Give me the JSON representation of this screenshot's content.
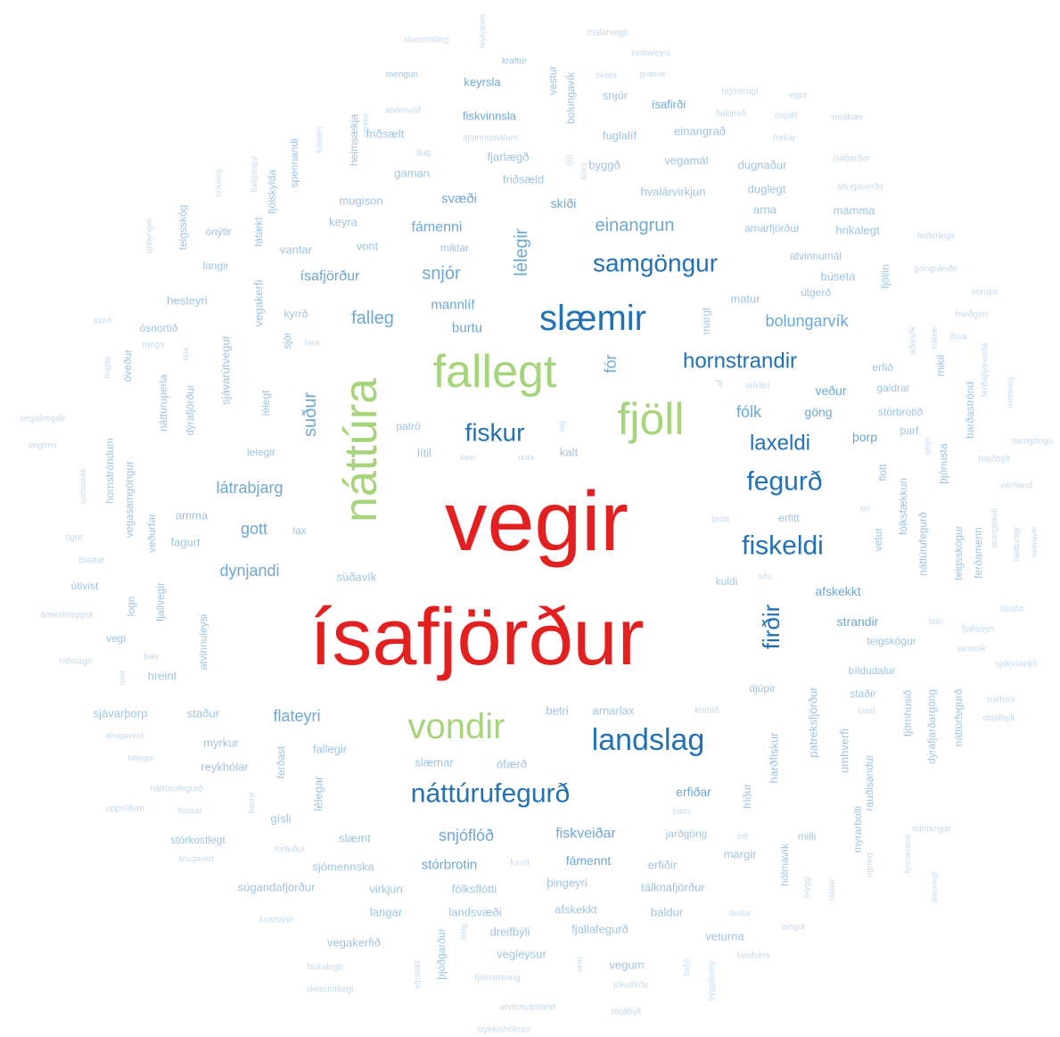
{
  "words": [
    "vegir",
    "ísafjörður",
    "fallegt",
    "náttúra",
    "fjöll",
    "vondir",
    "slæmir",
    "landslag",
    "náttúrufegurð",
    "samgöngur",
    "hornstrandir",
    "fiskur",
    "fegurð",
    "fiskeldi",
    "laxeldi",
    "firðir",
    "einangrun",
    "snjór",
    "lélegir",
    "falleg",
    "suður",
    "fólk",
    "fór",
    "bolungarvík",
    "ísafjörður",
    "fámenni",
    "svæði",
    "mannlíf",
    "burtu",
    "látrabjarg",
    "gott",
    "dynjandi",
    "flateyri",
    "snjóflóð",
    "stórbrotin",
    "fiskveiðar",
    "skemmtileg",
    "reykjanes",
    "malarvegir",
    "kraftur",
    "kvótaleysi",
    "mengun",
    "keyrsla",
    "vestur",
    "bolungavík",
    "skata",
    "grænar",
    "snjór",
    "ísafirði",
    "hrjóstrugt",
    "vigur",
    "atvinnulíf",
    "sandur",
    "fiskvinnsla",
    "fiskimið",
    "óspillt",
    "smábær",
    "frábært",
    "heimsækja",
    "friðsælt",
    "atvinnumálum",
    "fuglalíf",
    "einangrað",
    "frekar",
    "spennandi",
    "flug",
    "fjarlægð",
    "lítil",
    "fólks",
    "byggð",
    "vegamál",
    "dugnaður",
    "ísafjarðar",
    "fjallgöngur",
    "hrikaleg",
    "fjölskylda",
    "gaman",
    "friðsæld",
    "skíði",
    "hvalárvirkjun",
    "duglegt",
    "áhugaverðir",
    "teigsskóg",
    "mugison",
    "arna",
    "mamma",
    "ónýtir",
    "keyra",
    "arnarfjörður",
    "hrikalegt",
    "fátækt",
    "leiðinlegir",
    "sjóbyngeli",
    "vantar",
    "vont",
    "miklar",
    "langir",
    "atvinnumál",
    "gönguleiðir",
    "búseta",
    "fjöllin",
    "útgerð",
    "vondar",
    "hesteyri",
    "vegakerfi",
    "matur",
    "harðgert",
    "kyrrð",
    "ósnortið",
    "sveit",
    "mega",
    "fara",
    "sjór",
    "aðalvík",
    "frábær",
    "íbúa",
    "margt",
    "búa",
    "sjávarútvegur",
    "óveður",
    "hugsa",
    "erfið",
    "mikil",
    "ferðaþjónusta",
    "menning",
    "erfiður",
    "af",
    "veður",
    "galdrar",
    "náttúruperla",
    "dýrafjörður",
    "lélegt",
    "göng",
    "stórbrotið",
    "vegalengdir",
    "patró",
    "lag",
    "lítil",
    "laun",
    "nota",
    "kalt",
    "þorp",
    "þarf",
    "barðaströnd",
    "vegirnir",
    "hornströndum",
    "lelegir",
    "gegn",
    "þjónusta",
    "harðbýlt",
    "samgöngu",
    "vegasamgöngur",
    "flott",
    "fólksfækkun",
    "varðand",
    "sjálfstæðir",
    "sjó",
    "amma",
    "veðurfar",
    "brött",
    "erfitt",
    "fagurt",
    "lax",
    "vetur",
    "ögur",
    "náttúrufegurð",
    "teigsskógur",
    "ferðamenn",
    "drangjökull",
    "hætturegr",
    "veðravíti",
    "brattar",
    "súðavík",
    "séu",
    "kuldi",
    "útivist",
    "afskekkt",
    "fjallvegir",
    "logn",
    "atvinnuleysi",
    "árneshreppur",
    "skoða",
    "strandir",
    "fólki",
    "fjallasýn",
    "vegi",
    "teigskógur",
    "einstök",
    "bær",
    "rafmagn",
    "sjókvíaeldi",
    "bíldudalur",
    "dalir",
    "hreint",
    "patreksfjörður",
    "djúpir",
    "staðir",
    "tjörnhúsið",
    "dýrafjarðargöng",
    "náttúrfegurð",
    "náttúra",
    "land",
    "strjálbýlt",
    "sjávarþorp",
    "staður",
    "betri",
    "arnarlax",
    "komið",
    "áhugaverð",
    "myrkur",
    "umhverfi",
    "ferðast",
    "fallegir",
    "fallegur",
    "harðfiskur",
    "reykhólar",
    "slæmar",
    "ófærð",
    "rauðisandur",
    "náttúrufegurð",
    "lélegar",
    "erfiðar",
    "fríður",
    "mýrarbolti",
    "baunir",
    "uppsölum",
    "fossar",
    "gísli",
    "bæta",
    "stórkostlegt",
    "forfeður",
    "slæmt",
    "jarðgöng",
    "loft",
    "milli",
    "minningar",
    "hólmavík",
    "margir",
    "áhugavert",
    "sjómennska",
    "lundi",
    "fámennt",
    "erfiðir",
    "rigning",
    "fyrirverand",
    "súgandafjörður",
    "virkjun",
    "fólksflótti",
    "þingeyri",
    "tálknafjörður",
    "öryggi",
    "stáber",
    "ómurlegt",
    "kvartanir",
    "langar",
    "landsvæði",
    "afskekkt",
    "baldur",
    "deilur",
    "langur",
    "löng",
    "dreifbýli",
    "fjallafegurð",
    "vegakerfið",
    "þjóðgarður",
    "veturna",
    "vegleysur",
    "einstakt",
    "vetri",
    "vegum",
    "hafið",
    "byggðarlög",
    "landsins",
    "hrikalegir",
    "fjölmenning",
    "jökulfirðir",
    "skemmtilegt",
    "atvinnuástand",
    "strjábýlt",
    "stykkishólmur"
  ]
}
